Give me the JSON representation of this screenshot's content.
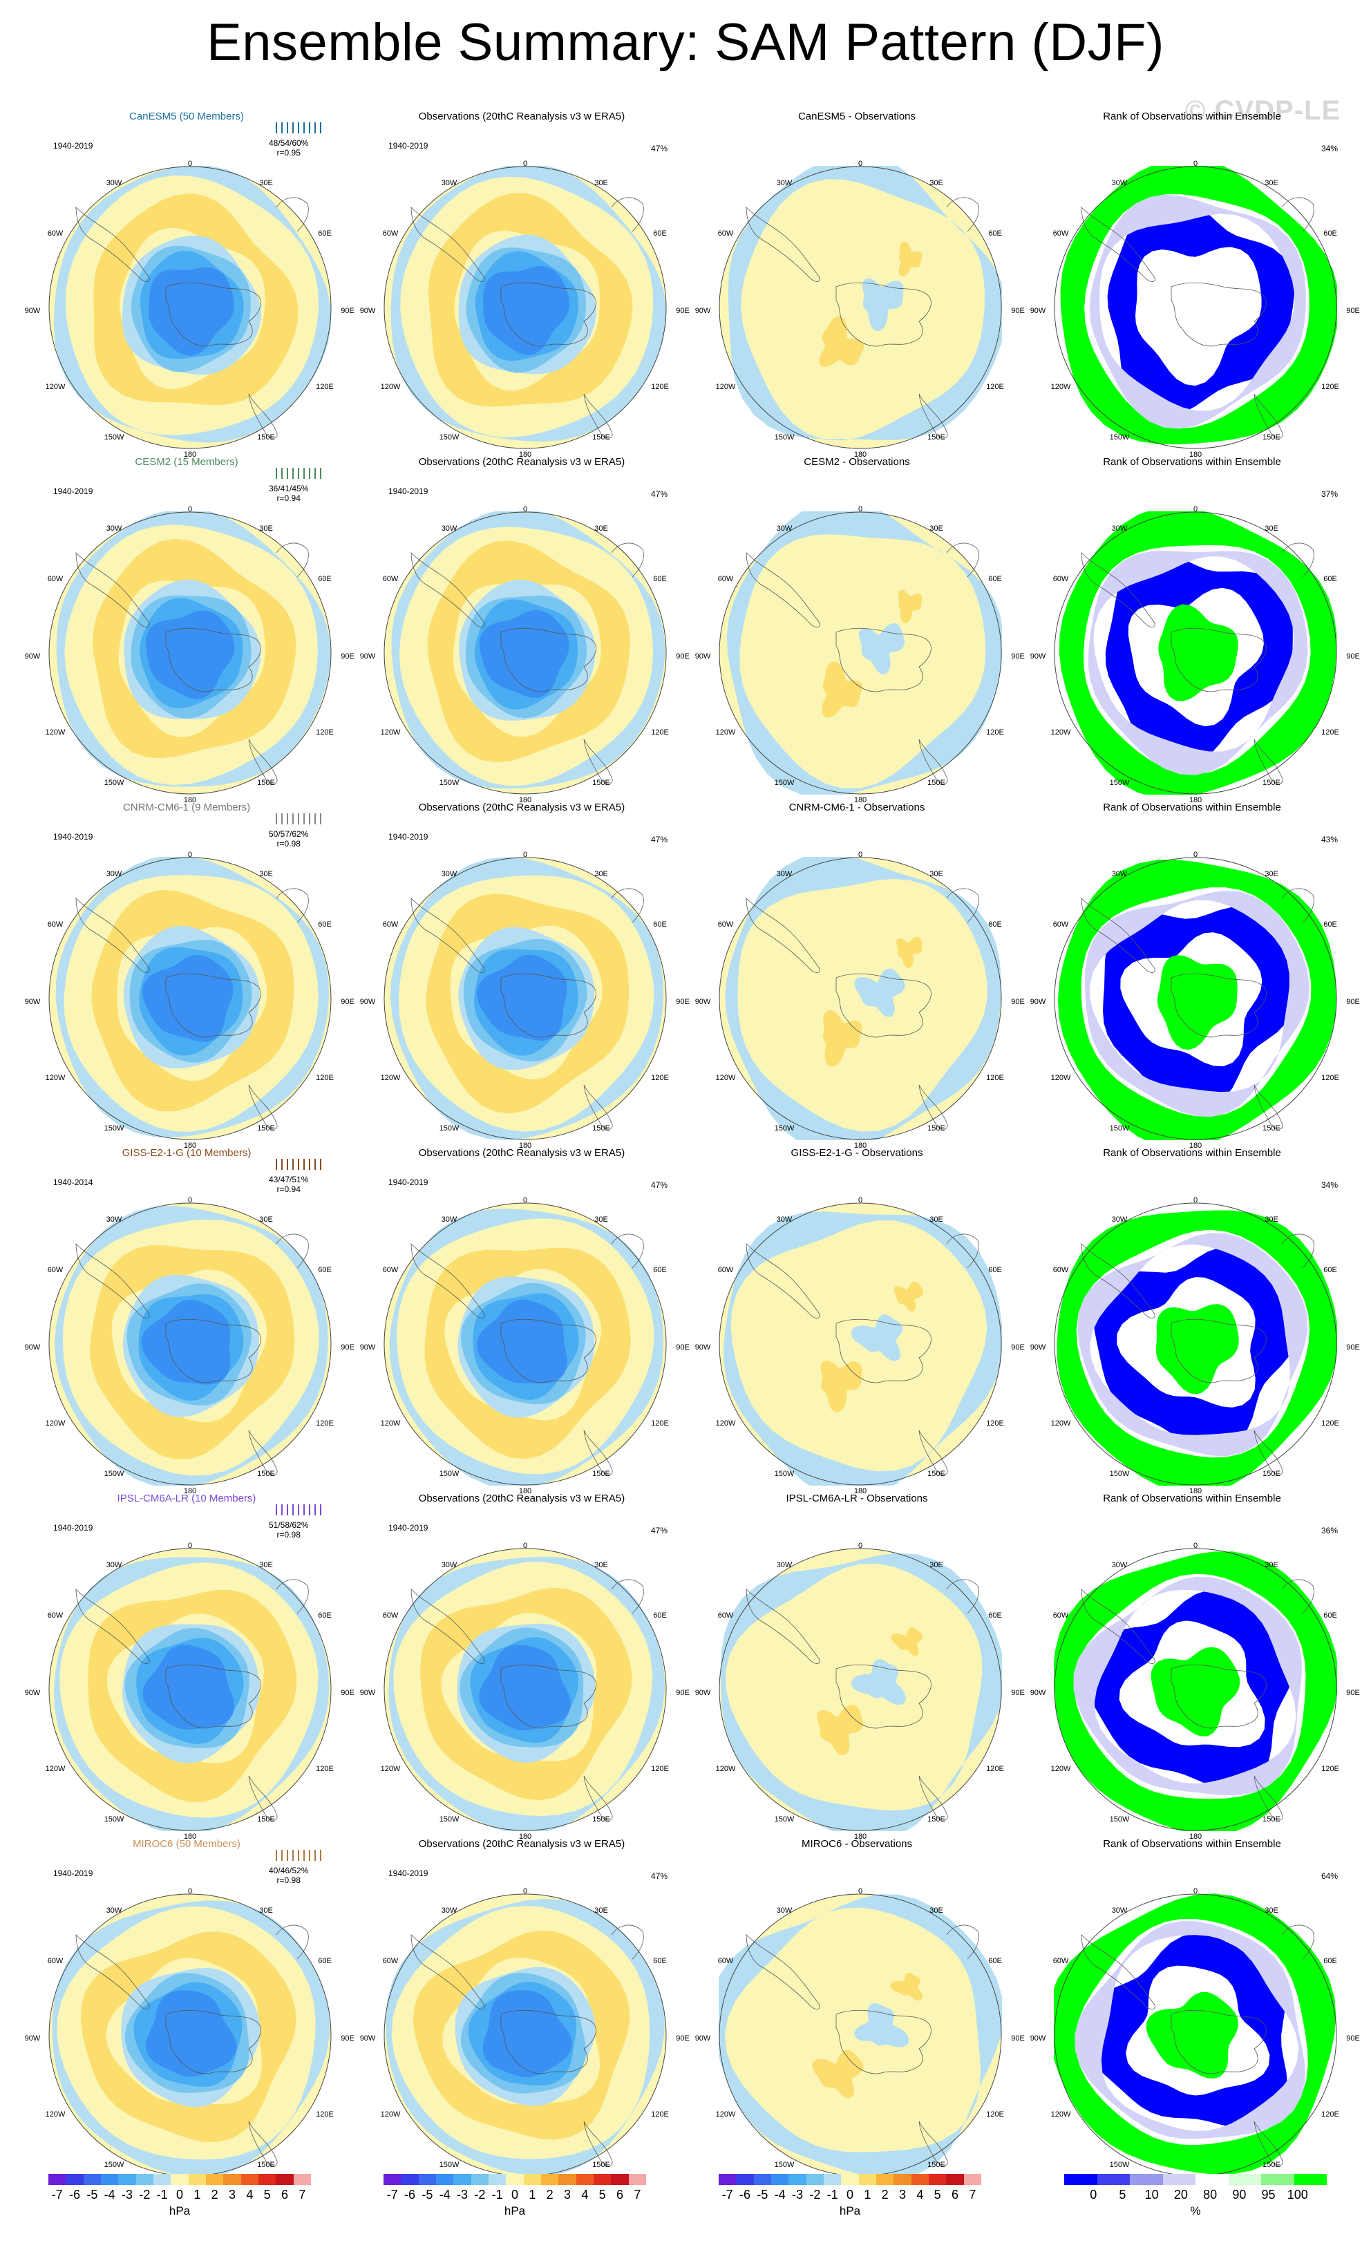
{
  "title": "Ensemble Summary: SAM Pattern (DJF)",
  "watermark": "© CVDP-LE",
  "map_labels": {
    "top": "0",
    "bottom": "180",
    "left": "90W",
    "right": "90E",
    "ul1": "30W",
    "ur1": "30E",
    "ul2": "60W",
    "ur2": "60E",
    "ll1": "120W",
    "lr1": "120E",
    "ll2": "150W",
    "lr2": "150E"
  },
  "colorbars": [
    {
      "type": "diverging",
      "ticks": [
        "-7",
        "-6",
        "-5",
        "-4",
        "-3",
        "-2",
        "-1",
        "0",
        "1",
        "2",
        "3",
        "4",
        "5",
        "6",
        "7"
      ],
      "unit": "hPa"
    },
    {
      "type": "diverging",
      "ticks": [
        "-7",
        "-6",
        "-5",
        "-4",
        "-3",
        "-2",
        "-1",
        "0",
        "1",
        "2",
        "3",
        "4",
        "5",
        "6",
        "7"
      ],
      "unit": "hPa"
    },
    {
      "type": "diverging",
      "ticks": [
        "-7",
        "-6",
        "-5",
        "-4",
        "-3",
        "-2",
        "-1",
        "0",
        "1",
        "2",
        "3",
        "4",
        "5",
        "6",
        "7"
      ],
      "unit": "hPa"
    },
    {
      "type": "rank",
      "ticks": [
        "0",
        "5",
        "10",
        "20",
        "80",
        "90",
        "95",
        "100"
      ],
      "unit": "%"
    }
  ],
  "colors": {
    "diverging": [
      "#6a1ed8",
      "#3a3ee6",
      "#3d68f0",
      "#3a8ff2",
      "#48adf2",
      "#78c6f0",
      "#b5def2",
      "#fbf6b6",
      "#fbde6e",
      "#fbb43c",
      "#f38f28",
      "#ef5b1e",
      "#df2a20",
      "#c5141c",
      "#f5a9a9"
    ],
    "rank": [
      "#0000ff",
      "#4040f0",
      "#9999ee",
      "#d2d2f8",
      "#ffffff",
      "#d9fdd9",
      "#8cf58c",
      "#00ff00"
    ]
  },
  "chart_data": {
    "type": "map-grid",
    "rows": [
      {
        "model": "CanESM5 (50 Members)",
        "model_color": "#1a6f9f",
        "period": "1940-2019",
        "stats": "48/54/60%",
        "r": "r=0.95",
        "strip_color": "#1a6f9f",
        "obs_title": "Observations (20thC Reanalysis v3 w ERA5)",
        "obs_period": "1940-2019",
        "obs_pct": "47%",
        "diff_title": "CanESM5 - Observations",
        "rank_title": "Rank of Observations within Ensemble",
        "rank_pct": "34%"
      },
      {
        "model": "CESM2 (15 Members)",
        "model_color": "#4a8a5a",
        "period": "1940-2019",
        "stats": "36/41/45%",
        "r": "r=0.94",
        "strip_color": "#4a8a5a",
        "obs_title": "Observations (20thC Reanalysis v3 w ERA5)",
        "obs_period": "1940-2019",
        "obs_pct": "47%",
        "diff_title": "CESM2 - Observations",
        "rank_title": "Rank of Observations within Ensemble",
        "rank_pct": "37%"
      },
      {
        "model": "CNRM-CM6-1 (9 Members)",
        "model_color": "#777777",
        "period": "1940-2019",
        "stats": "50/57/62%",
        "r": "r=0.98",
        "strip_color": "#888888",
        "obs_title": "Observations (20thC Reanalysis v3 w ERA5)",
        "obs_period": "1940-2019",
        "obs_pct": "47%",
        "diff_title": "CNRM-CM6-1 - Observations",
        "rank_title": "Rank of Observations within Ensemble",
        "rank_pct": "43%"
      },
      {
        "model": "GISS-E2-1-G (10 Members)",
        "model_color": "#8a4a1e",
        "period": "1940-2014",
        "stats": "43/47/51%",
        "r": "r=0.94",
        "strip_color": "#8a4a1e",
        "obs_title": "Observations (20thC Reanalysis v3 w ERA5)",
        "obs_period": "1940-2019",
        "obs_pct": "47%",
        "diff_title": "GISS-E2-1-G - Observations",
        "rank_title": "Rank of Observations within Ensemble",
        "rank_pct": "34%"
      },
      {
        "model": "IPSL-CM6A-LR (10 Members)",
        "model_color": "#7a4ad8",
        "period": "1940-2019",
        "stats": "51/58/62%",
        "r": "r=0.98",
        "strip_color": "#7a4ad8",
        "obs_title": "Observations (20thC Reanalysis v3 w ERA5)",
        "obs_period": "1940-2019",
        "obs_pct": "47%",
        "diff_title": "IPSL-CM6A-LR - Observations",
        "rank_title": "Rank of Observations within Ensemble",
        "rank_pct": "36%"
      },
      {
        "model": "MIROC6 (50 Members)",
        "model_color": "#c8925a",
        "period": "1940-2019",
        "stats": "40/46/52%",
        "r": "r=0.98",
        "strip_color": "#b07840",
        "obs_title": "Observations (20thC Reanalysis v3 w ERA5)",
        "obs_period": "1940-2019",
        "obs_pct": "47%",
        "diff_title": "MIROC6 - Observations",
        "rank_title": "Rank of Observations within Ensemble",
        "rank_pct": "64%"
      }
    ]
  }
}
